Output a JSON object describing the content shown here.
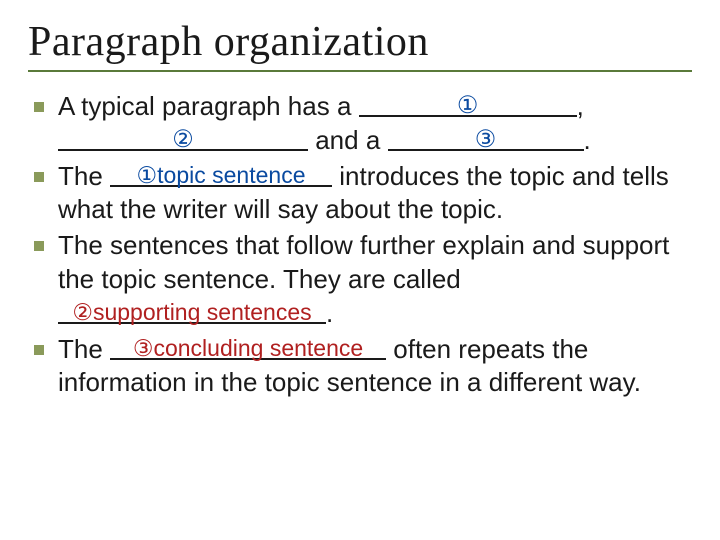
{
  "title": "Paragraph organization",
  "colors": {
    "title_underline": "#5a7a3a",
    "bullet": "#8a9a5a",
    "blank_label_blue": "#0a4aa0",
    "blank_label_red": "#b02020",
    "text": "#1a1a1a",
    "background": "#ffffff"
  },
  "typography": {
    "title_font": "Times New Roman",
    "title_size_pt": 32,
    "body_font": "Arial",
    "body_size_pt": 20
  },
  "bullets": [
    {
      "pre1": "A typical paragraph has a ",
      "blank1_label": "①",
      "blank1_width": 218,
      "post1": ",",
      "pre2": "",
      "blank2_label": "②",
      "blank2_width": 250,
      "mid2": " and a ",
      "blank3_label": "③",
      "blank3_width": 196,
      "post2": "."
    },
    {
      "pre1": "The ",
      "blank1_label": "①topic sentence",
      "blank1_width": 222,
      "post1": " introduces the topic and tells what the writer will say about the topic."
    },
    {
      "pre1": "The sentences that follow further explain and support the topic sentence. They are called ",
      "blank1_label": "②supporting sentences",
      "blank1_width": 268,
      "post1": "."
    },
    {
      "pre1": " The ",
      "blank1_label": "③concluding sentence",
      "blank1_width": 276,
      "post1": " often repeats the information in the topic sentence in a different way."
    }
  ]
}
